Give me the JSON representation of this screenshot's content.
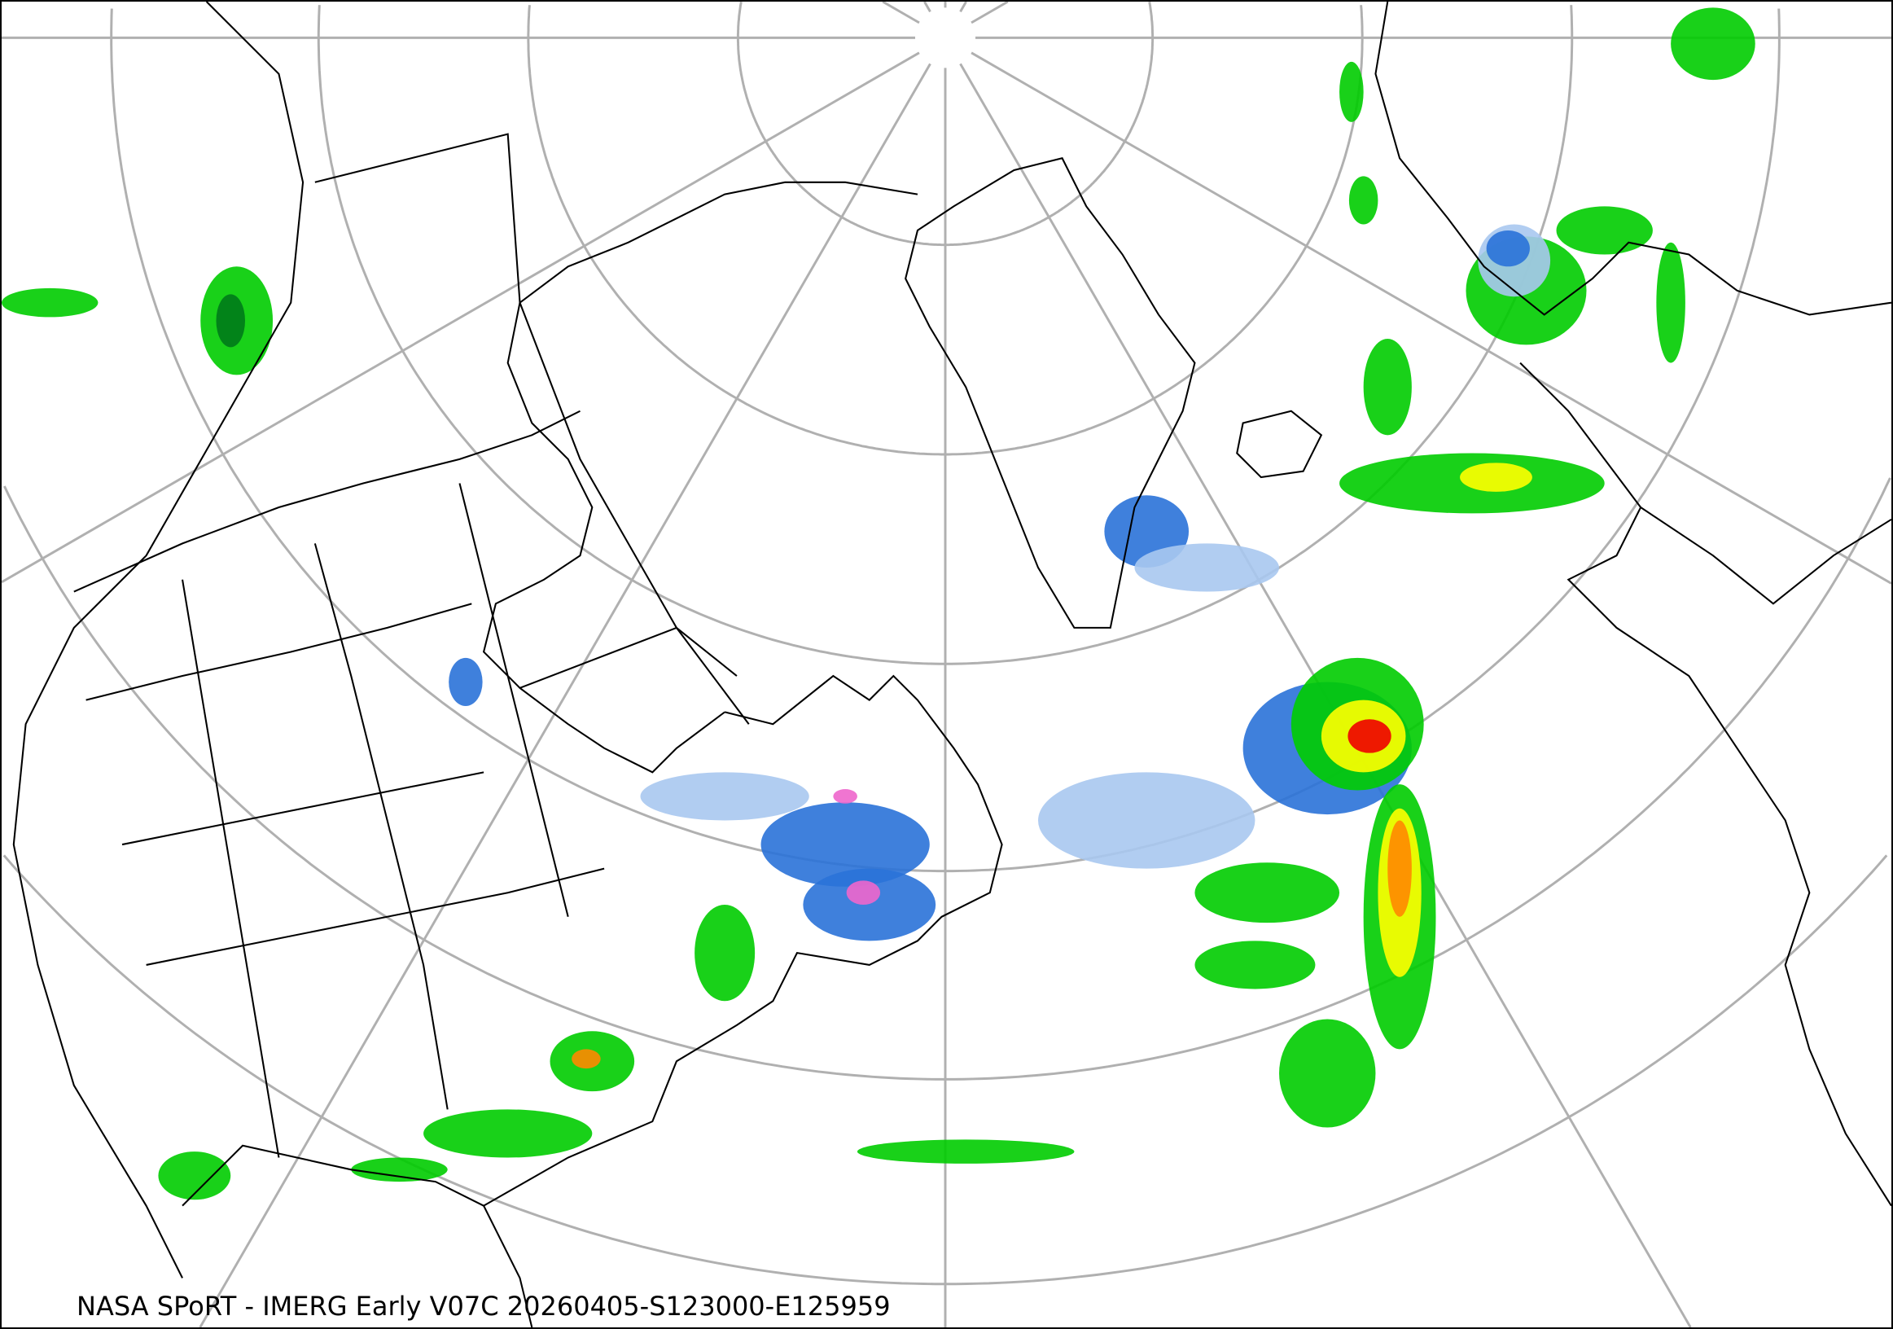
{
  "map": {
    "caption": "NASA SPoRT - IMERG Early V07C 20260405-S123000-E125959",
    "projection": "north polar stereographic",
    "colors": {
      "graticule": "#b0b0b0",
      "boundaries": "#000000",
      "precip_light": "#a8c8f0",
      "precip_snow": "#2a72d8",
      "precip_mixed": "#ee66cc",
      "precip_low": "#00cc00",
      "precip_dark_green": "#007a1a",
      "precip_mid": "#ffff00",
      "precip_high": "#ff8800",
      "precip_extreme": "#ee0000"
    }
  }
}
